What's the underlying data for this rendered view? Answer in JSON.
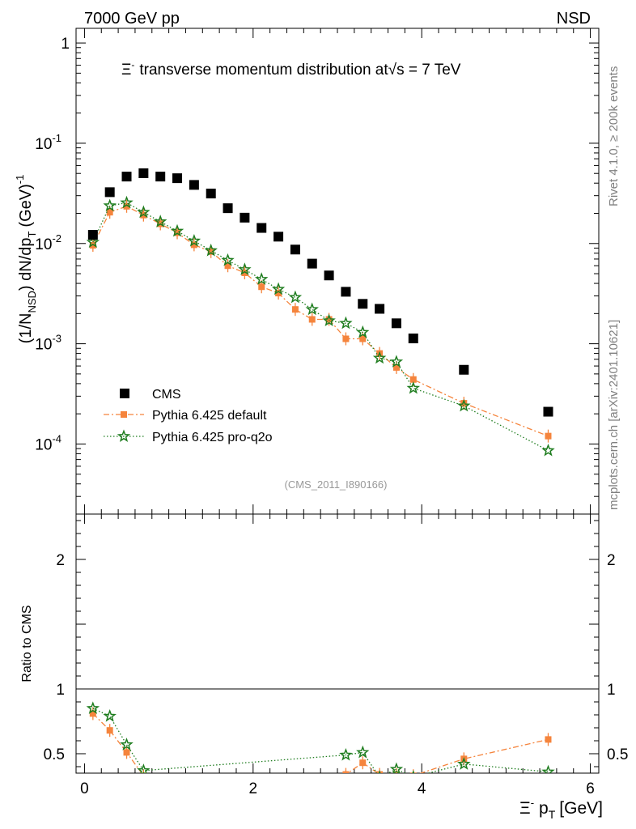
{
  "header": {
    "left_label": "7000 GeV pp",
    "right_label": "NSD"
  },
  "colors": {
    "cms": "#000000",
    "default": "#f5843c",
    "proq2o": "#1f7d1f",
    "ref_label": "#999999",
    "side_text": "#808080"
  },
  "chart_data": [
    {
      "type": "scatter",
      "panel": "main",
      "title": "Ξ⁻ transverse momentum distribution at √s = 7 TeV",
      "ylabel": "(1/N_NSD) dN/dp_T (GeV)^-1",
      "xlim": [
        -0.1,
        6.1
      ],
      "ylim": [
        2e-05,
        1.4
      ],
      "yscale": "log",
      "ytick_labels": [
        "10^-4",
        "10^-3",
        "10^-2",
        "10^-1",
        "1"
      ],
      "reference_label": "(CMS_2011_I890166)",
      "legend": {
        "position": "bottom-left",
        "entries": [
          "CMS",
          "Pythia 6.425 default",
          "Pythia 6.425 pro-q2o"
        ]
      },
      "series": [
        {
          "name": "CMS",
          "marker": "square",
          "x": [
            0.1,
            0.3,
            0.5,
            0.7,
            0.9,
            1.1,
            1.3,
            1.5,
            1.7,
            1.9,
            2.1,
            2.3,
            2.5,
            2.7,
            2.9,
            3.1,
            3.3,
            3.5,
            3.7,
            3.9,
            4.5,
            5.5
          ],
          "y": [
            0.0122,
            0.0325,
            0.0465,
            0.0502,
            0.0465,
            0.0448,
            0.0384,
            0.0315,
            0.0225,
            0.0181,
            0.0143,
            0.0117,
            0.0087,
            0.0063,
            0.0048,
            0.0033,
            0.0025,
            0.00223,
            0.0016,
            0.00113,
            0.00055,
            0.00021
          ]
        },
        {
          "name": "Pythia 6.425 default",
          "marker": "square-small",
          "line": "dash-dot",
          "x": [
            0.1,
            0.3,
            0.5,
            0.7,
            0.9,
            1.1,
            1.3,
            1.5,
            1.7,
            1.9,
            2.1,
            2.3,
            2.5,
            2.7,
            2.9,
            3.1,
            3.3,
            3.5,
            3.7,
            3.9,
            4.5,
            5.5
          ],
          "y": [
            0.0096,
            0.0205,
            0.0235,
            0.0192,
            0.0157,
            0.0128,
            0.0097,
            0.0083,
            0.006,
            0.0051,
            0.0037,
            0.0032,
            0.0022,
            0.00175,
            0.00175,
            0.00112,
            0.00112,
            0.0008,
            0.00058,
            0.00044,
            0.000255,
            0.00012
          ]
        },
        {
          "name": "Pythia 6.425 pro-q2o",
          "marker": "star",
          "line": "dotted",
          "x": [
            0.1,
            0.3,
            0.5,
            0.7,
            0.9,
            1.1,
            1.3,
            1.5,
            1.7,
            1.9,
            2.1,
            2.3,
            2.5,
            2.7,
            2.9,
            3.1,
            3.3,
            3.5,
            3.7,
            3.9,
            4.5,
            5.5
          ],
          "y": [
            0.0103,
            0.0238,
            0.0255,
            0.0205,
            0.0165,
            0.0133,
            0.0106,
            0.0085,
            0.0068,
            0.0055,
            0.0044,
            0.0035,
            0.0029,
            0.0022,
            0.0017,
            0.0016,
            0.0013,
            0.00072,
            0.00066,
            0.00036,
            0.00024,
            8.6e-05
          ]
        }
      ]
    },
    {
      "type": "scatter",
      "panel": "ratio",
      "ylabel": "Ratio to CMS",
      "xlabel": "Ξ⁻ p_T [GeV]",
      "xlim": [
        -0.1,
        6.1
      ],
      "ylim": [
        0.35,
        2.35
      ],
      "xtick_labels": [
        "0",
        "2",
        "4",
        "6"
      ],
      "ytick_labels": [
        "0.5",
        "1",
        "2"
      ],
      "reference_line": 1,
      "series": [
        {
          "name": "Pythia 6.425 default",
          "x": [
            0.1,
            0.3,
            0.5,
            0.7,
            3.1,
            3.3,
            3.5,
            3.7,
            3.9,
            4.5,
            5.5
          ],
          "y": [
            0.81,
            0.68,
            0.51,
            0.33,
            0.34,
            0.43,
            0.34,
            0.34,
            0.33,
            0.46,
            0.61
          ]
        },
        {
          "name": "Pythia 6.425 pro-q2o",
          "x": [
            0.1,
            0.3,
            0.5,
            0.7,
            3.1,
            3.3,
            3.5,
            3.7,
            3.9,
            4.5,
            5.5
          ],
          "y": [
            0.85,
            0.79,
            0.57,
            0.37,
            0.49,
            0.51,
            0.32,
            0.38,
            0.32,
            0.42,
            0.36
          ]
        }
      ]
    }
  ],
  "side_labels": {
    "rivet": "Rivet 4.1.0, ≥ 200k events",
    "mcplots": "mcplots.cern.ch [arXiv:2401.10621]"
  },
  "text": {
    "xi": "Ξ",
    "minus": "-",
    "title_rest": "transverse momentum distribution at",
    "sqrt": "√s = 7 TeV",
    "ylabel_pre": "(1/N",
    "ylabel_sub": "NSD",
    "ylabel_mid": ") dN/dp",
    "ylabel_subT": "T",
    "ylabel_unit": "(GeV)",
    "ylabel_exp": "-1",
    "xlabel_p": "p",
    "xlabel_T": "T",
    "xlabel_unit": "[GeV]"
  }
}
